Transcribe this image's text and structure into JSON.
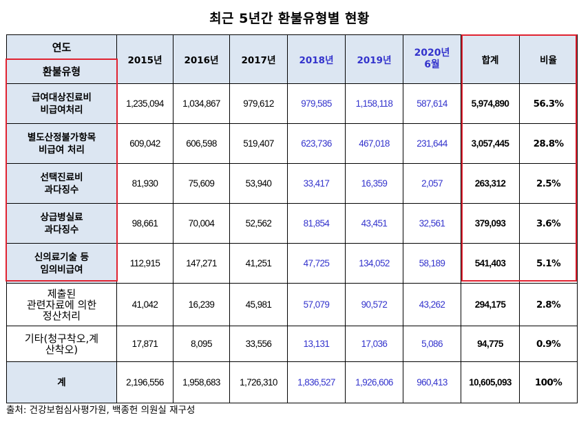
{
  "title": "최근 5년간 환불유형별 현황",
  "corner": {
    "top": "연도",
    "bottom": "환불유형"
  },
  "columns": [
    "2015년",
    "2016년",
    "2017년",
    "2018년",
    "2019년",
    "2020년\n6월",
    "합계",
    "비율"
  ],
  "rows": [
    {
      "label": "급여대상진료비\n비급여처리",
      "values": [
        "1,235,094",
        "1,034,867",
        "979,612",
        "979,585",
        "1,158,118",
        "587,614",
        "5,974,890",
        "56.3%"
      ]
    },
    {
      "label": "별도산정불가항목\n비급여 처리",
      "values": [
        "609,042",
        "606,598",
        "519,407",
        "623,736",
        "467,018",
        "231,644",
        "3,057,445",
        "28.8%"
      ]
    },
    {
      "label": "선택진료비\n과다징수",
      "values": [
        "81,930",
        "75,609",
        "53,940",
        "33,417",
        "16,359",
        "2,057",
        "263,312",
        "2.5%"
      ]
    },
    {
      "label": "상급병실료\n과다징수",
      "values": [
        "98,661",
        "70,004",
        "52,562",
        "81,854",
        "43,451",
        "32,561",
        "379,093",
        "3.6%"
      ]
    },
    {
      "label": "신의료기술 등\n임의비급여",
      "values": [
        "112,915",
        "147,271",
        "41,251",
        "47,725",
        "134,052",
        "58,189",
        "541,403",
        "5.1%"
      ]
    },
    {
      "label": "제출된\n관련자료에 의한\n정산처리",
      "values": [
        "41,042",
        "16,239",
        "45,981",
        "57,079",
        "90,572",
        "43,262",
        "294,175",
        "2.8%"
      ]
    },
    {
      "label": "기타(청구착오,계\n산착오)",
      "values": [
        "17,871",
        "8,095",
        "33,556",
        "13,131",
        "17,036",
        "5,086",
        "94,775",
        "0.9%"
      ]
    },
    {
      "label": "계",
      "values": [
        "2,196,556",
        "1,958,683",
        "1,726,310",
        "1,836,527",
        "1,926,606",
        "960,413",
        "10,605,093",
        "100%"
      ]
    }
  ],
  "source": "출처: 건강보험심사평가원, 백종헌 의원실 재구성",
  "colors": {
    "header_bg": "#dce6f2",
    "recent_years_text": "#3333cc",
    "highlight_box": "#e0212f"
  }
}
